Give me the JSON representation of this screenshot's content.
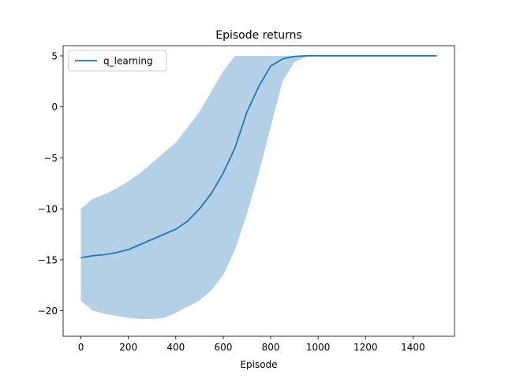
{
  "chart_data": {
    "type": "line",
    "title": "Episode returns",
    "xlabel": "Episode",
    "ylabel": "",
    "xlim": [
      -75,
      1575
    ],
    "ylim": [
      -22.5,
      6
    ],
    "xticks": [
      0,
      200,
      400,
      600,
      800,
      1000,
      1200,
      1400
    ],
    "yticks": [
      -20,
      -15,
      -10,
      -5,
      0,
      5
    ],
    "grid": false,
    "legend": {
      "placement": "upper-left",
      "entries": [
        "q_learning"
      ]
    },
    "colors": {
      "line": "#1f77b4",
      "band": "#a6c8e2"
    },
    "series": [
      {
        "name": "q_learning",
        "x": [
          0,
          50,
          100,
          150,
          200,
          250,
          300,
          350,
          400,
          450,
          500,
          550,
          600,
          650,
          700,
          750,
          800,
          850,
          900,
          950,
          1000,
          1500
        ],
        "mean": [
          -14.8,
          -14.6,
          -14.5,
          -14.3,
          -14.0,
          -13.5,
          -13.0,
          -12.5,
          -12.0,
          -11.2,
          -10.0,
          -8.5,
          -6.5,
          -4.0,
          -0.5,
          2.0,
          4.0,
          4.7,
          4.95,
          5.0,
          5.0,
          5.0
        ],
        "lower": [
          -19.0,
          -20.0,
          -20.3,
          -20.5,
          -20.7,
          -20.8,
          -20.8,
          -20.7,
          -20.2,
          -19.6,
          -19.0,
          -18.0,
          -16.5,
          -14.0,
          -10.5,
          -6.5,
          -2.0,
          2.5,
          4.4,
          4.9,
          5.0,
          5.0
        ],
        "upper": [
          -10.0,
          -9.0,
          -8.6,
          -8.0,
          -7.3,
          -6.5,
          -5.5,
          -4.5,
          -3.5,
          -2.0,
          -0.5,
          1.5,
          3.5,
          5.0,
          5.0,
          5.0,
          5.0,
          5.0,
          5.0,
          5.0,
          5.0,
          5.0
        ]
      }
    ]
  }
}
